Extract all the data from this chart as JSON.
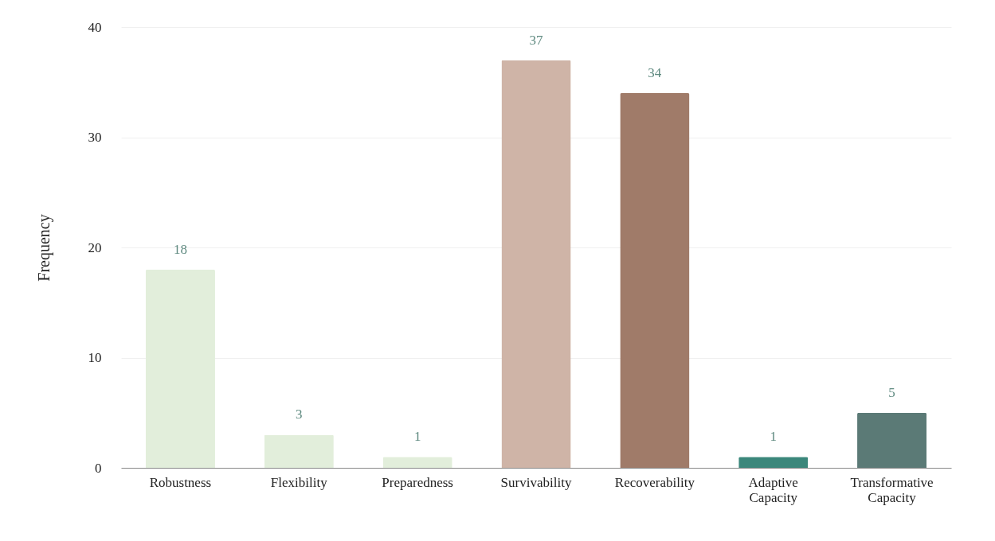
{
  "chart_data": {
    "type": "bar",
    "ylabel": "Frequency",
    "categories": [
      "Robustness",
      "Flexibility",
      "Preparedness",
      "Survivability",
      "Recoverability",
      "Adaptive Capacity",
      "Transformative Capacity"
    ],
    "values": [
      18,
      3,
      1,
      37,
      34,
      1,
      5
    ],
    "colors": [
      "#e2eedb",
      "#e2eedb",
      "#e2eedb",
      "#cfb4a7",
      "#a07b69",
      "#3b877b",
      "#5b7a76"
    ],
    "ylim": [
      0,
      40
    ],
    "yticks": [
      0,
      10,
      20,
      30,
      40
    ],
    "grid": "y",
    "data_labels": true
  }
}
